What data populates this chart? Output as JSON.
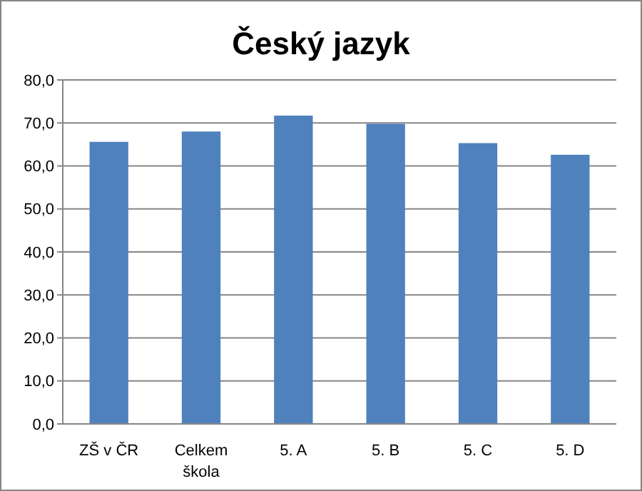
{
  "chart_data": {
    "type": "bar",
    "title": "Český jazyk",
    "categories": [
      "ZŠ v ČR",
      "Celkem\nškola",
      "5. A",
      "5. B",
      "5. C",
      "5. D"
    ],
    "values": [
      65.6,
      68.0,
      71.7,
      69.8,
      65.3,
      62.6
    ],
    "color": "#4f81bd",
    "ylim": [
      0,
      80
    ],
    "yticks": [
      {
        "value": 0,
        "label": "0,0"
      },
      {
        "value": 10,
        "label": "10,0"
      },
      {
        "value": 20,
        "label": "20,0"
      },
      {
        "value": 30,
        "label": "30,0"
      },
      {
        "value": 40,
        "label": "40,0"
      },
      {
        "value": 50,
        "label": "50,0"
      },
      {
        "value": 60,
        "label": "60,0"
      },
      {
        "value": 70,
        "label": "70,0"
      },
      {
        "value": 80,
        "label": "80,0"
      }
    ],
    "grid": "y"
  }
}
